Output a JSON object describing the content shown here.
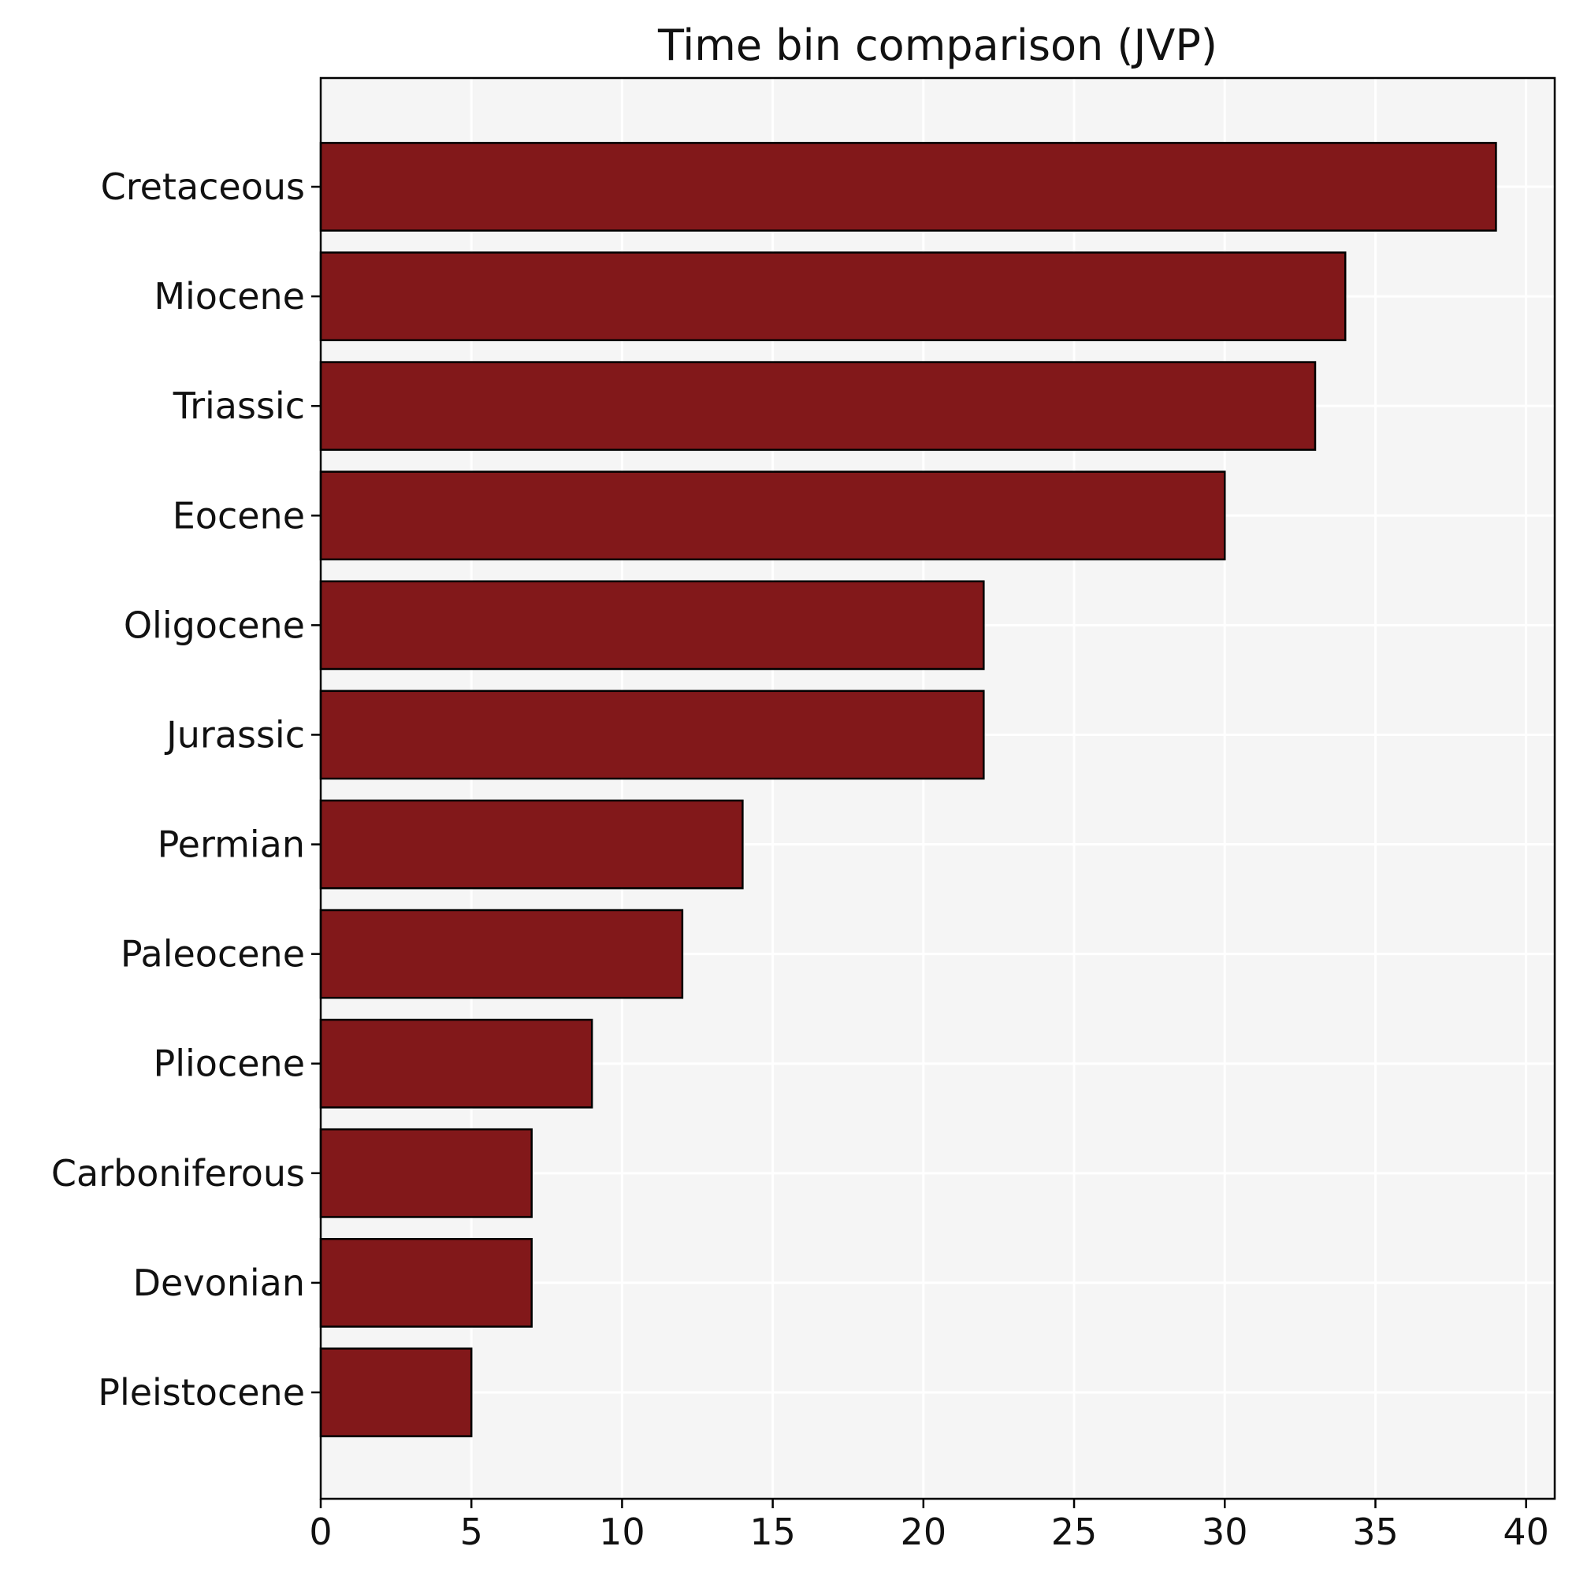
{
  "chart_data": {
    "type": "bar",
    "orientation": "horizontal",
    "title": "Time bin comparison (JVP)",
    "xlabel": "",
    "ylabel": "",
    "categories": [
      "Cretaceous",
      "Miocene",
      "Triassic",
      "Eocene",
      "Oligocene",
      "Jurassic",
      "Permian",
      "Paleocene",
      "Pliocene",
      "Carboniferous",
      "Devonian",
      "Pleistocene"
    ],
    "values": [
      39,
      34,
      33,
      30,
      22,
      22,
      14,
      12,
      9,
      7,
      7,
      5
    ],
    "xlim": [
      0,
      40.95
    ],
    "xticks": [
      0,
      5,
      10,
      15,
      20,
      25,
      30,
      35,
      40
    ],
    "grid": true,
    "legend": "none",
    "colors": {
      "bar_fill": "#82181a",
      "bar_edge": "#000000",
      "plot_background": "#f5f5f5",
      "grid": "#ffffff",
      "axes": "#000000"
    }
  }
}
